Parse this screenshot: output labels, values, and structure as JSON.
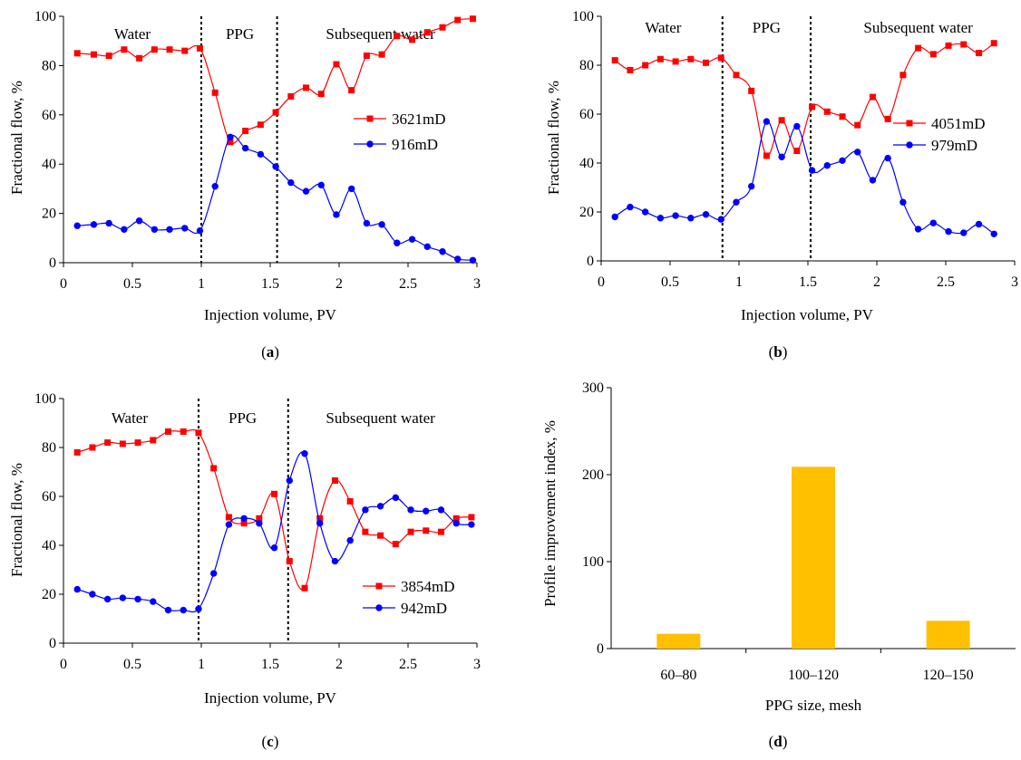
{
  "chart_data": [
    {
      "id": "a",
      "type": "line",
      "caption_letter": "a",
      "xlabel": "Injection volume, PV",
      "ylabel": "Fractional flow, %",
      "xlim": [
        0,
        3
      ],
      "ylim": [
        0,
        100
      ],
      "xticks": [
        "0",
        "0.5",
        "1",
        "1.5",
        "2",
        "2.5",
        "3"
      ],
      "yticks": [
        "0",
        "20",
        "40",
        "60",
        "80",
        "100"
      ],
      "phases": [
        {
          "label": "Water",
          "center": 0.5
        },
        {
          "label": "PPG",
          "center": 1.28
        },
        {
          "label": "Subsequent water",
          "center": 2.3
        }
      ],
      "dividers": [
        1.0,
        1.55
      ],
      "legend_position": "center-right",
      "series": [
        {
          "name": "3621mD",
          "color": "#ff0000",
          "marker": "square",
          "x": [
            0.1,
            0.22,
            0.33,
            0.44,
            0.55,
            0.66,
            0.77,
            0.88,
            0.99,
            1.1,
            1.21,
            1.32,
            1.43,
            1.54,
            1.65,
            1.76,
            1.87,
            1.98,
            2.09,
            2.2,
            2.31,
            2.42,
            2.53,
            2.64,
            2.75,
            2.86,
            2.97
          ],
          "y": [
            85,
            84.5,
            84,
            86.5,
            83,
            86.5,
            86.5,
            86,
            87,
            69,
            49,
            53.5,
            56,
            61,
            67.5,
            71,
            68.5,
            80.5,
            70,
            84,
            84.5,
            92,
            90.5,
            93.5,
            95.5,
            98.5,
            99
          ]
        },
        {
          "name": "916mD",
          "color": "#0000ff",
          "marker": "circle",
          "x": [
            0.1,
            0.22,
            0.33,
            0.44,
            0.55,
            0.66,
            0.77,
            0.88,
            0.99,
            1.1,
            1.21,
            1.32,
            1.43,
            1.54,
            1.65,
            1.76,
            1.87,
            1.98,
            2.09,
            2.2,
            2.31,
            2.42,
            2.53,
            2.64,
            2.75,
            2.86,
            2.97
          ],
          "y": [
            15,
            15.5,
            16,
            13.5,
            17,
            13.5,
            13.5,
            14,
            13,
            31,
            51,
            46.5,
            44,
            39,
            32.5,
            29,
            31.5,
            19.5,
            30,
            16,
            15.5,
            8,
            9.5,
            6.5,
            4.5,
            1.5,
            1
          ]
        }
      ]
    },
    {
      "id": "b",
      "type": "line",
      "caption_letter": "b",
      "xlabel": "Injection volume, PV",
      "ylabel": "Fractional flow, %",
      "xlim": [
        0,
        3
      ],
      "ylim": [
        0,
        100
      ],
      "xticks": [
        "0",
        "0.5",
        "1",
        "1.5",
        "2",
        "2.5",
        "3"
      ],
      "yticks": [
        "0",
        "20",
        "40",
        "60",
        "80",
        "100"
      ],
      "phases": [
        {
          "label": "Water",
          "center": 0.45
        },
        {
          "label": "PPG",
          "center": 1.2
        },
        {
          "label": "Subsequent water",
          "center": 2.3
        }
      ],
      "dividers": [
        0.88,
        1.52
      ],
      "legend_position": "center-right",
      "series": [
        {
          "name": "4051mD",
          "color": "#ff0000",
          "marker": "square",
          "x": [
            0.1,
            0.21,
            0.32,
            0.43,
            0.54,
            0.65,
            0.76,
            0.87,
            0.98,
            1.09,
            1.2,
            1.31,
            1.42,
            1.53,
            1.64,
            1.75,
            1.86,
            1.97,
            2.08,
            2.19,
            2.3,
            2.41,
            2.52,
            2.63,
            2.74,
            2.85
          ],
          "y": [
            82,
            78,
            80,
            82.5,
            81.5,
            82.5,
            81,
            83,
            76,
            69.5,
            43,
            57.5,
            45,
            63,
            61,
            59,
            55.5,
            67,
            58,
            76,
            87,
            84.5,
            88,
            88.5,
            85,
            89
          ]
        },
        {
          "name": "979mD",
          "color": "#0000ff",
          "marker": "circle",
          "x": [
            0.1,
            0.21,
            0.32,
            0.43,
            0.54,
            0.65,
            0.76,
            0.87,
            0.98,
            1.09,
            1.2,
            1.31,
            1.42,
            1.53,
            1.64,
            1.75,
            1.86,
            1.97,
            2.08,
            2.19,
            2.3,
            2.41,
            2.52,
            2.63,
            2.74,
            2.85
          ],
          "y": [
            18,
            22,
            20,
            17.5,
            18.5,
            17.5,
            19,
            17,
            24,
            30.5,
            57,
            42.5,
            55,
            37,
            39,
            41,
            44.5,
            33,
            42,
            24,
            13,
            15.5,
            12,
            11.5,
            15,
            11
          ]
        }
      ]
    },
    {
      "id": "c",
      "type": "line",
      "caption_letter": "c",
      "xlabel": "Injection volume, PV",
      "ylabel": "Fractional flow, %",
      "xlim": [
        0,
        3
      ],
      "ylim": [
        0,
        100
      ],
      "xticks": [
        "0",
        "0.5",
        "1",
        "1.5",
        "2",
        "2.5",
        "3"
      ],
      "yticks": [
        "0",
        "20",
        "40",
        "60",
        "80",
        "100"
      ],
      "phases": [
        {
          "label": "Water",
          "center": 0.48
        },
        {
          "label": "PPG",
          "center": 1.3
        },
        {
          "label": "Subsequent water",
          "center": 2.3
        }
      ],
      "dividers": [
        0.98,
        1.63
      ],
      "legend_position": "bottom-right",
      "series": [
        {
          "name": "3854mD",
          "color": "#ff0000",
          "marker": "square",
          "x": [
            0.1,
            0.21,
            0.32,
            0.43,
            0.54,
            0.65,
            0.76,
            0.87,
            0.98,
            1.09,
            1.2,
            1.31,
            1.42,
            1.53,
            1.64,
            1.75,
            1.86,
            1.97,
            2.08,
            2.19,
            2.3,
            2.41,
            2.52,
            2.63,
            2.74,
            2.85,
            2.96
          ],
          "y": [
            78,
            80,
            82,
            81.5,
            82,
            83,
            86.5,
            86.5,
            86,
            71.5,
            51.5,
            49,
            51,
            61,
            33.5,
            22.5,
            51,
            66.5,
            58,
            45.5,
            44,
            40.5,
            45.5,
            46,
            45.5,
            51,
            51.5
          ]
        },
        {
          "name": "942mD",
          "color": "#0000ff",
          "marker": "circle",
          "x": [
            0.1,
            0.21,
            0.32,
            0.43,
            0.54,
            0.65,
            0.76,
            0.87,
            0.98,
            1.09,
            1.2,
            1.31,
            1.42,
            1.53,
            1.64,
            1.75,
            1.86,
            1.97,
            2.08,
            2.19,
            2.3,
            2.41,
            2.52,
            2.63,
            2.74,
            2.85,
            2.96
          ],
          "y": [
            22,
            20,
            18,
            18.5,
            18,
            17,
            13.5,
            13.5,
            14,
            28.5,
            48.5,
            51,
            49,
            39,
            66.5,
            77.5,
            49,
            33.5,
            42,
            54.5,
            56,
            59.5,
            54.5,
            54,
            54.5,
            49,
            48.5
          ]
        }
      ]
    },
    {
      "id": "d",
      "type": "bar",
      "caption_letter": "d",
      "xlabel": "PPG size, mesh",
      "ylabel": "Profile improvement index, %",
      "ylim": [
        0,
        300
      ],
      "yticks": [
        "0",
        "100",
        "200",
        "300"
      ],
      "categories": [
        "60–80",
        "100–120",
        "120–150"
      ],
      "values": [
        17,
        209,
        32
      ],
      "color": "#ffc000"
    }
  ],
  "captions": {
    "open": "(",
    "close": ")"
  }
}
